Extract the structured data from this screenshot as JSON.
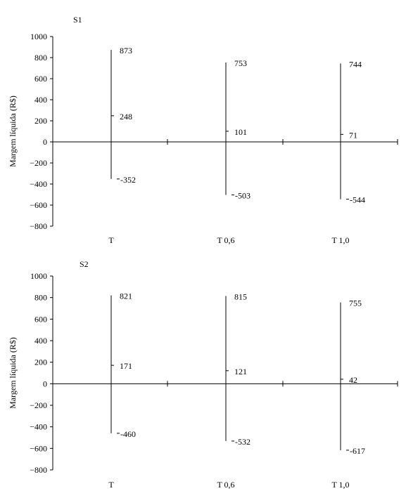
{
  "chart_data": [
    {
      "type": "high-low-mean",
      "title": "S1",
      "ylabel": "Margem líquida (R$)",
      "xlabel": "",
      "ylim": [
        -800,
        1000
      ],
      "yticks": [
        1000,
        800,
        600,
        400,
        200,
        0,
        -200,
        -400,
        -600,
        -800
      ],
      "categories": [
        "T",
        "T 0,6",
        "T 1,0"
      ],
      "high": [
        873,
        753,
        744
      ],
      "mean": [
        248,
        101,
        71
      ],
      "low": [
        -352,
        -503,
        -544
      ]
    },
    {
      "type": "high-low-mean",
      "title": "S2",
      "ylabel": "Margem líquida (R$)",
      "xlabel": "",
      "ylim": [
        -800,
        1000
      ],
      "yticks": [
        1000,
        800,
        600,
        400,
        200,
        0,
        -200,
        -400,
        -600,
        -800
      ],
      "categories": [
        "T",
        "T 0,6",
        "T 1,0"
      ],
      "high": [
        821,
        815,
        755
      ],
      "mean": [
        171,
        121,
        42
      ],
      "low": [
        -460,
        -532,
        -617
      ]
    }
  ]
}
